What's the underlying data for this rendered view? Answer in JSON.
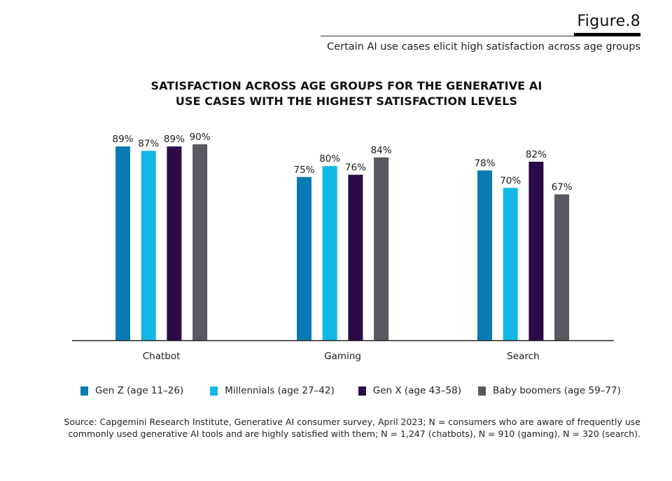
{
  "figure": {
    "label": "Figure.8",
    "subtitle": "Certain AI use cases elicit high satisfaction across age groups"
  },
  "chart_data": {
    "type": "bar",
    "title_line1": "SATISFACTION ACROSS AGE GROUPS FOR THE GENERATIVE AI",
    "title_line2": "USE CASES WITH THE HIGHEST SATISFACTION LEVELS",
    "categories": [
      "Chatbot",
      "Gaming",
      "Search"
    ],
    "series": [
      {
        "name": "Gen Z (age 11–26)",
        "color": "#0a7ab5",
        "values": [
          89,
          75,
          78
        ]
      },
      {
        "name": "Millennials (age 27–42)",
        "color": "#12b7e6",
        "values": [
          87,
          80,
          70
        ]
      },
      {
        "name": "Gen X (age 43–58)",
        "color": "#2b0b47",
        "values": [
          89,
          76,
          82
        ]
      },
      {
        "name": "Baby boomers (age 59–77)",
        "color": "#5a5961",
        "values": [
          90,
          84,
          67
        ]
      }
    ],
    "value_suffix": "%",
    "xlabel": "",
    "ylabel": "",
    "ylim": [
      0,
      100
    ],
    "grid": false,
    "legend_position": "bottom"
  },
  "source": {
    "line1": "Source: Capgemini Research Institute, Generative AI consumer survey, April 2023; N = consumers who are aware of frequently use",
    "line2": "commonly used generative AI tools and are highly satisfied with them; N = 1,247 (chatbots), N = 910 (gaming), N = 320 (search)."
  }
}
